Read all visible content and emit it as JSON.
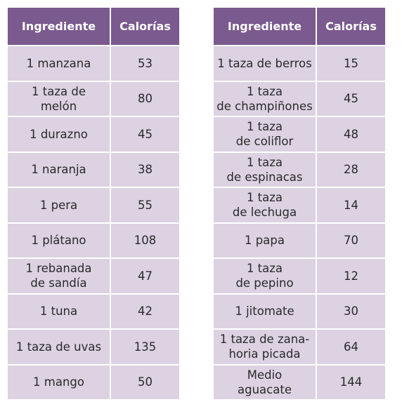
{
  "headers": {
    "ingredient": "Ingrediente",
    "calories": "Calorías"
  },
  "left_rows": [
    {
      "ingredient": "1 manzana",
      "calories": "53"
    },
    {
      "ingredient": "1 taza de\nmelón",
      "calories": "80"
    },
    {
      "ingredient": "1 durazno",
      "calories": "45"
    },
    {
      "ingredient": "1 naranja",
      "calories": "38"
    },
    {
      "ingredient": "1 pera",
      "calories": "55"
    },
    {
      "ingredient": "1 plátano",
      "calories": "108"
    },
    {
      "ingredient": "1 rebanada\nde sandía",
      "calories": "47"
    },
    {
      "ingredient": "1 tuna",
      "calories": "42"
    },
    {
      "ingredient": "1 taza de uvas",
      "calories": "135"
    },
    {
      "ingredient": "1 mango",
      "calories": "50"
    }
  ],
  "right_rows": [
    {
      "ingredient": "1 taza de berros",
      "calories": "15"
    },
    {
      "ingredient": "1 taza\nde champiñones",
      "calories": "45"
    },
    {
      "ingredient": "1 taza\nde coliflor",
      "calories": "48"
    },
    {
      "ingredient": "1 taza\nde espinacas",
      "calories": "28"
    },
    {
      "ingredient": "1 taza\nde lechuga",
      "calories": "14"
    },
    {
      "ingredient": "1 papa",
      "calories": "70"
    },
    {
      "ingredient": "1 taza\nde pepino",
      "calories": "12"
    },
    {
      "ingredient": "1 jitomate",
      "calories": "30"
    },
    {
      "ingredient": "1 taza de zana-\nhoria picada",
      "calories": "64"
    },
    {
      "ingredient": "Medio\naguacate",
      "calories": "144"
    }
  ],
  "colors": {
    "header_bg": "#7b5a8f",
    "header_text": "#ffffff",
    "cell_bg": "#dcd2e2",
    "cell_text": "#2a2a2a"
  }
}
